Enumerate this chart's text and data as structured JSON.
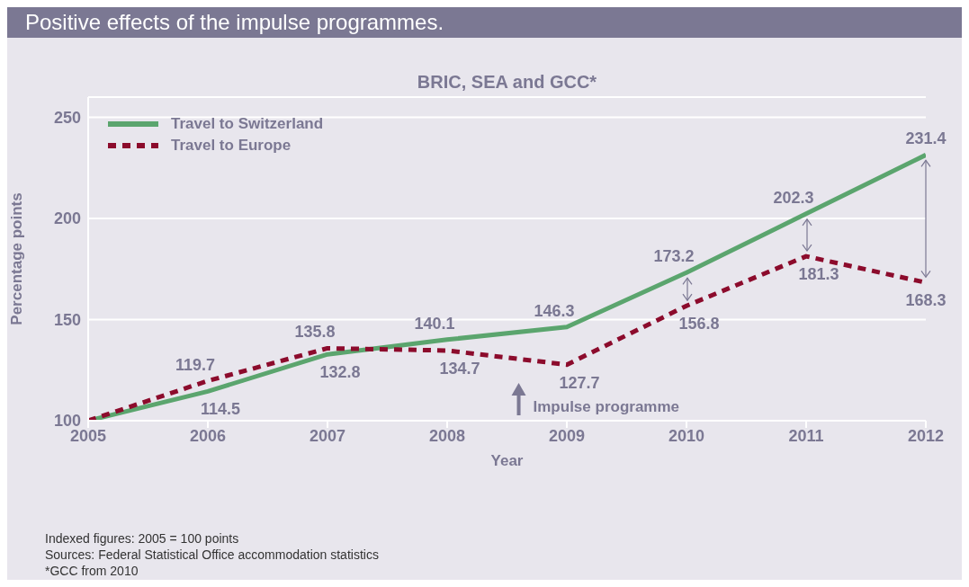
{
  "chart_data": {
    "type": "line",
    "title": "BRIC, SEA and GCC*",
    "subtitle": "Positive effects of the impulse programmes.",
    "xlabel": "Year",
    "ylabel": "Percentage points",
    "x": [
      2005,
      2006,
      2007,
      2008,
      2009,
      2010,
      2011,
      2012
    ],
    "series": [
      {
        "name": "Travel to Switzerland",
        "color": "#5ba56e",
        "line_style": "solid",
        "values": [
          100,
          114.5,
          132.8,
          140.1,
          146.3,
          173.2,
          202.3,
          231.4
        ],
        "value_labels": [
          null,
          "114.5",
          "132.8",
          "140.1",
          "146.3",
          "173.2",
          "202.3",
          "231.4"
        ]
      },
      {
        "name": "Travel to Europe",
        "color": "#8c0b2c",
        "line_style": "dashed",
        "values": [
          100,
          119.7,
          135.8,
          134.7,
          127.7,
          156.8,
          181.3,
          168.3
        ],
        "value_labels": [
          null,
          "119.7",
          "135.8",
          "134.7",
          "127.7",
          "156.8",
          "181.3",
          "168.3"
        ]
      }
    ],
    "xlim": [
      2005,
      2012
    ],
    "xticks": [
      2005,
      2006,
      2007,
      2008,
      2009,
      2010,
      2011,
      2012
    ],
    "ylim": [
      100,
      260
    ],
    "yticks": [
      100,
      150,
      200,
      250
    ],
    "grid": "y",
    "legend": "top left",
    "marker": "none",
    "annotations": [
      "Impulse programme",
      "Indexed figures: 2005 = 100 points",
      "Sources: Federal Statistical Office accommodation statistics",
      "*GCC from 2010"
    ]
  }
}
